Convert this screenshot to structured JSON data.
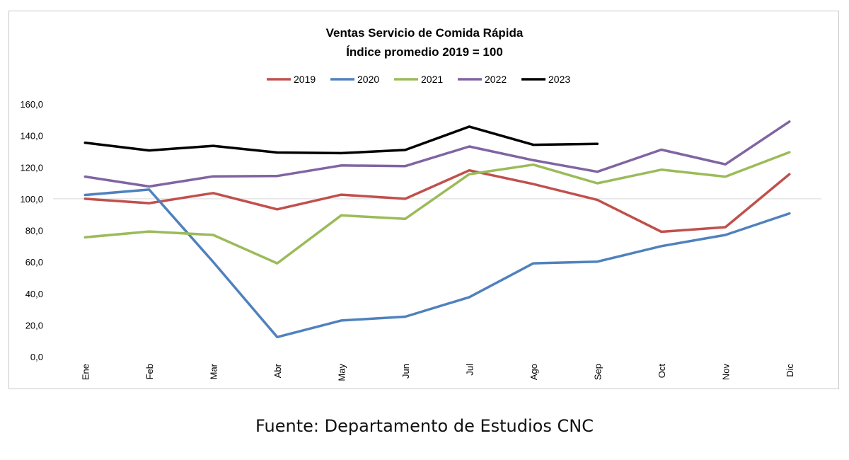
{
  "chart_data": {
    "type": "line",
    "title": "Ventas Servicio de Comida Rápida",
    "subtitle": "Índice promedio 2019 = 100",
    "categories": [
      "Ene",
      "Feb",
      "Mar",
      "Abr",
      "May",
      "Jun",
      "Jul",
      "Ago",
      "Sep",
      "Oct",
      "Nov",
      "Dic"
    ],
    "ylim": [
      0,
      160
    ],
    "y_ticks": [
      "0,0",
      "20,0",
      "40,0",
      "60,0",
      "80,0",
      "100,0",
      "120,0",
      "140,0",
      "160,0"
    ],
    "reference_line": 100,
    "grid": false,
    "legend_position": "top",
    "series": [
      {
        "name": "2019",
        "color": "#c0504d",
        "values": [
          100.0,
          97.2,
          103.6,
          93.3,
          102.6,
          100.0,
          118.0,
          109.3,
          99.3,
          79.1,
          82.0,
          115.6
        ]
      },
      {
        "name": "2020",
        "color": "#4f81bd",
        "values": [
          102.4,
          105.8,
          60.0,
          12.4,
          22.9,
          25.3,
          37.7,
          59.1,
          60.2,
          70.0,
          77.1,
          90.7
        ]
      },
      {
        "name": "2021",
        "color": "#9bbb59",
        "values": [
          75.6,
          79.3,
          77.1,
          59.1,
          89.5,
          87.3,
          115.6,
          121.6,
          109.8,
          118.4,
          114.0,
          129.5
        ]
      },
      {
        "name": "2022",
        "color": "#8064a2",
        "values": [
          114.0,
          107.8,
          114.2,
          114.4,
          121.1,
          120.7,
          133.1,
          124.4,
          117.1,
          131.1,
          121.8,
          148.9
        ]
      },
      {
        "name": "2023",
        "color": "#000000",
        "values": [
          135.5,
          130.6,
          133.5,
          129.3,
          128.9,
          130.9,
          145.7,
          134.2,
          134.8,
          null,
          null,
          null
        ]
      }
    ]
  },
  "source": "Fuente: Departamento de Estudios CNC"
}
